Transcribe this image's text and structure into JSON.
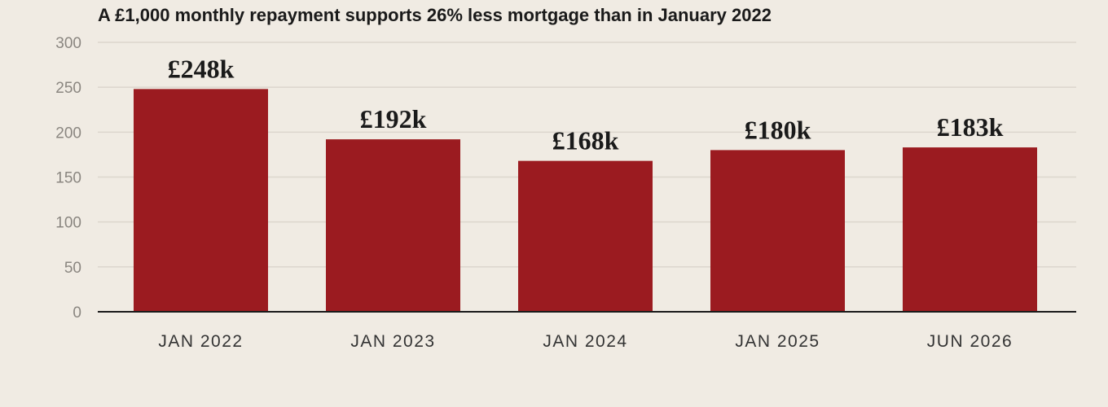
{
  "chart_data": {
    "type": "bar",
    "title": "A £1,000 monthly repayment supports 26% less mortgage than in January 2022",
    "xlabel": "",
    "ylabel": "",
    "categories": [
      "JAN 2022",
      "JAN 2023",
      "JAN 2024",
      "JAN 2025",
      "JUN 2026"
    ],
    "values": [
      248,
      192,
      168,
      180,
      183
    ],
    "data_labels": [
      "£248k",
      "£192k",
      "£168k",
      "£180k",
      "£183k"
    ],
    "ylim": [
      0,
      300
    ],
    "yticks": [
      0,
      50,
      100,
      150,
      200,
      250,
      300
    ],
    "grid": true,
    "legend": "none",
    "colors": {
      "bar": "#9b1b20",
      "background": "#f0ebe3",
      "grid": "#dcd6cd",
      "axis": "#1a1a1a"
    }
  }
}
